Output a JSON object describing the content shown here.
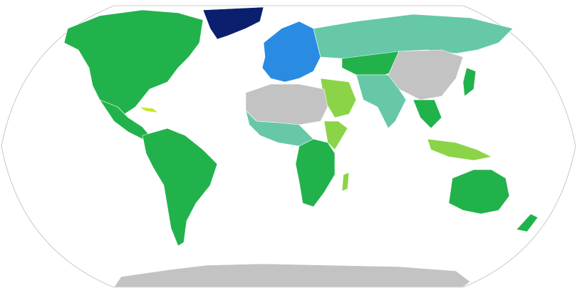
{
  "map": {
    "projection": "robinson",
    "colors": {
      "greenland": "#0a1f6e",
      "schengen_blue": "#2a8be3",
      "green": "#22b24c",
      "teal": "#66c8a6",
      "light_green": "#8bd448",
      "yellow_green": "#c5e82c",
      "no_data_grey": "#c3c3c3",
      "ocean": "#ffffff",
      "outline": "#bbbbbb"
    }
  }
}
